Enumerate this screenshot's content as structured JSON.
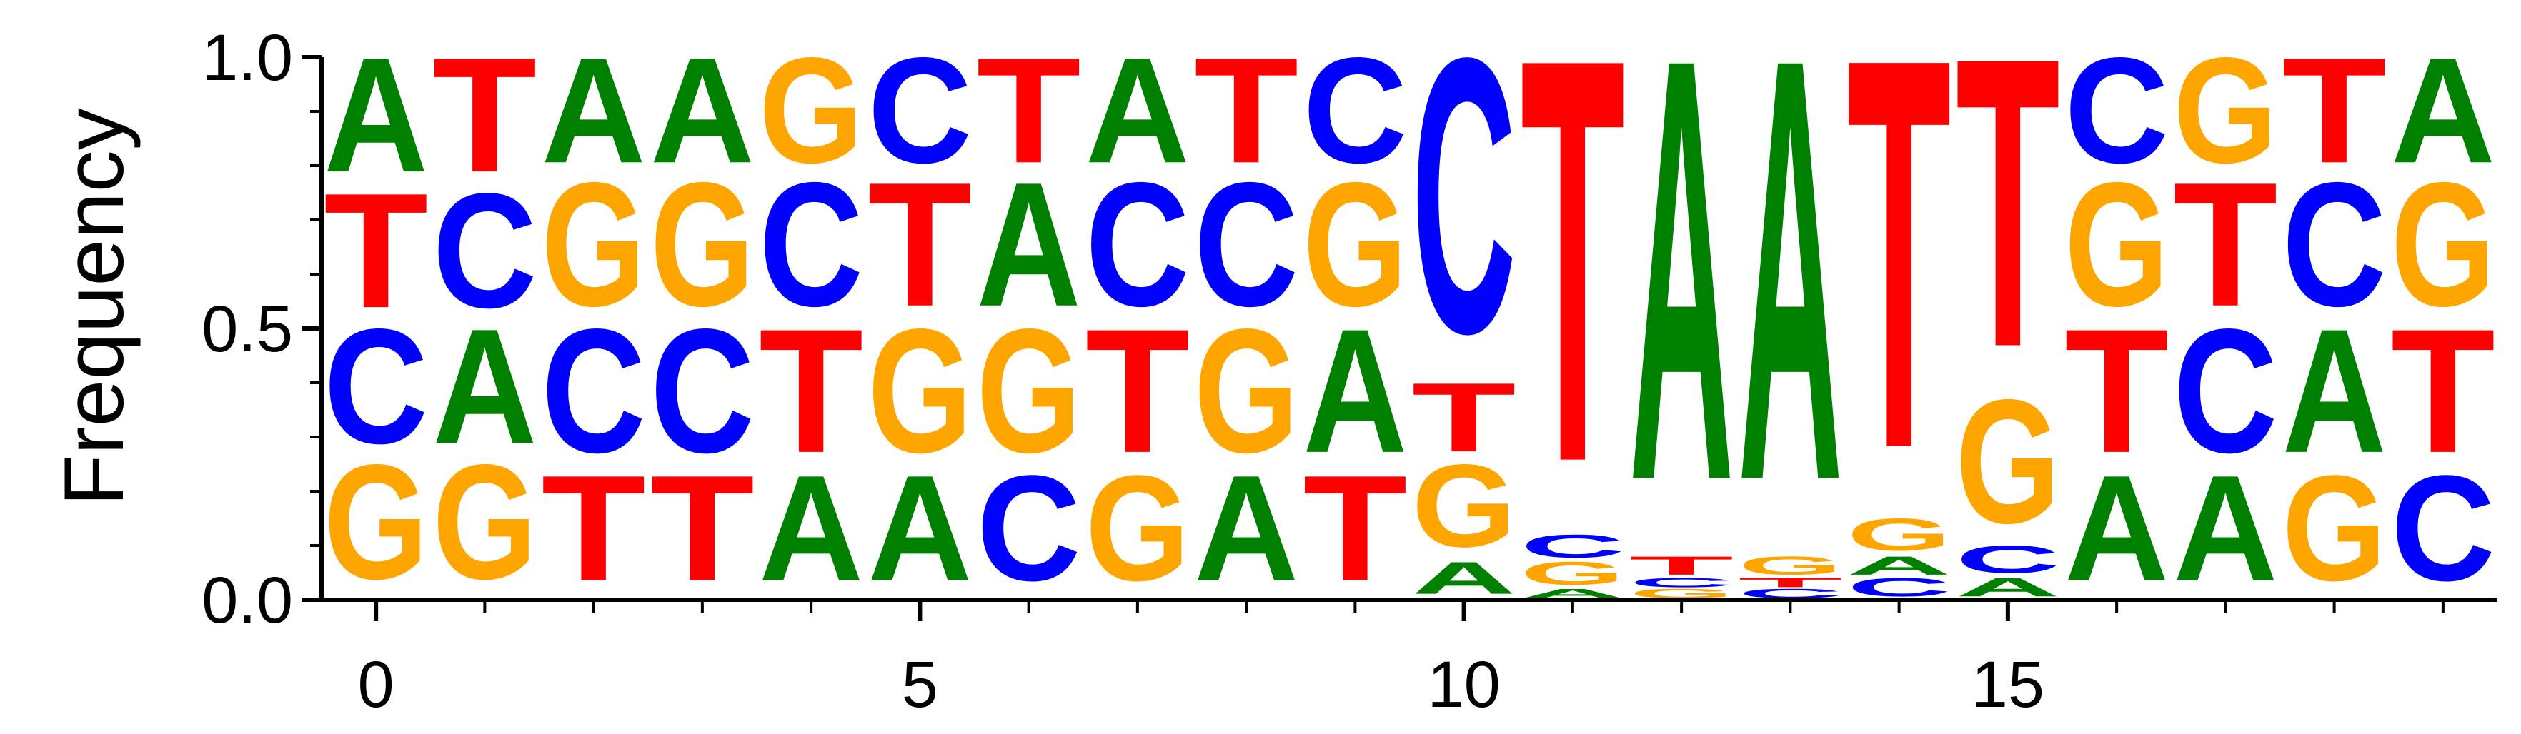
{
  "chart_data": {
    "type": "sequence-logo",
    "title": "",
    "xlabel": "",
    "ylabel": "Frequency",
    "ylim": [
      0,
      1
    ],
    "yticks": [
      "0.0",
      "0.5",
      "1.0"
    ],
    "xticks": [
      0,
      5,
      10,
      15
    ],
    "xlim": [
      -0.5,
      19.5
    ],
    "colors": {
      "A": "#008000",
      "C": "#0000ff",
      "G": "#ffa500",
      "T": "#ff0000"
    },
    "positions": [
      [
        [
          "G",
          0.25
        ],
        [
          "C",
          0.25
        ],
        [
          "T",
          0.25
        ],
        [
          "A",
          0.25
        ]
      ],
      [
        [
          "G",
          0.25
        ],
        [
          "A",
          0.25
        ],
        [
          "C",
          0.25
        ],
        [
          "T",
          0.25
        ]
      ],
      [
        [
          "T",
          0.23
        ],
        [
          "C",
          0.27
        ],
        [
          "G",
          0.27
        ],
        [
          "A",
          0.23
        ]
      ],
      [
        [
          "T",
          0.23
        ],
        [
          "C",
          0.27
        ],
        [
          "G",
          0.27
        ],
        [
          "A",
          0.23
        ]
      ],
      [
        [
          "A",
          0.23
        ],
        [
          "T",
          0.27
        ],
        [
          "C",
          0.27
        ],
        [
          "G",
          0.23
        ]
      ],
      [
        [
          "A",
          0.23
        ],
        [
          "G",
          0.27
        ],
        [
          "T",
          0.27
        ],
        [
          "C",
          0.23
        ]
      ],
      [
        [
          "C",
          0.23
        ],
        [
          "G",
          0.27
        ],
        [
          "A",
          0.27
        ],
        [
          "T",
          0.23
        ]
      ],
      [
        [
          "G",
          0.23
        ],
        [
          "T",
          0.27
        ],
        [
          "C",
          0.27
        ],
        [
          "A",
          0.23
        ]
      ],
      [
        [
          "A",
          0.23
        ],
        [
          "G",
          0.27
        ],
        [
          "C",
          0.27
        ],
        [
          "T",
          0.23
        ]
      ],
      [
        [
          "T",
          0.23
        ],
        [
          "A",
          0.27
        ],
        [
          "G",
          0.27
        ],
        [
          "C",
          0.23
        ]
      ],
      [
        [
          "A",
          0.07
        ],
        [
          "G",
          0.18
        ],
        [
          "T",
          0.15
        ],
        [
          "C",
          0.6
        ]
      ],
      [
        [
          "A",
          0.02
        ],
        [
          "G",
          0.05
        ],
        [
          "C",
          0.05
        ],
        [
          "T",
          0.88
        ]
      ],
      [
        [
          "G",
          0.02
        ],
        [
          "C",
          0.02
        ],
        [
          "T",
          0.04
        ],
        [
          "A",
          0.92
        ]
      ],
      [
        [
          "C",
          0.02
        ],
        [
          "T",
          0.02
        ],
        [
          "G",
          0.04
        ],
        [
          "A",
          0.92
        ]
      ],
      [
        [
          "C",
          0.04
        ],
        [
          "A",
          0.04
        ],
        [
          "G",
          0.07
        ],
        [
          "T",
          0.85
        ]
      ],
      [
        [
          "A",
          0.04
        ],
        [
          "C",
          0.06
        ],
        [
          "G",
          0.27
        ],
        [
          "T",
          0.63
        ]
      ],
      [
        [
          "A",
          0.23
        ],
        [
          "T",
          0.27
        ],
        [
          "G",
          0.27
        ],
        [
          "C",
          0.23
        ]
      ],
      [
        [
          "A",
          0.23
        ],
        [
          "C",
          0.27
        ],
        [
          "T",
          0.27
        ],
        [
          "G",
          0.23
        ]
      ],
      [
        [
          "G",
          0.23
        ],
        [
          "A",
          0.27
        ],
        [
          "C",
          0.27
        ],
        [
          "T",
          0.23
        ]
      ],
      [
        [
          "C",
          0.23
        ],
        [
          "T",
          0.27
        ],
        [
          "G",
          0.27
        ],
        [
          "A",
          0.23
        ]
      ]
    ]
  }
}
